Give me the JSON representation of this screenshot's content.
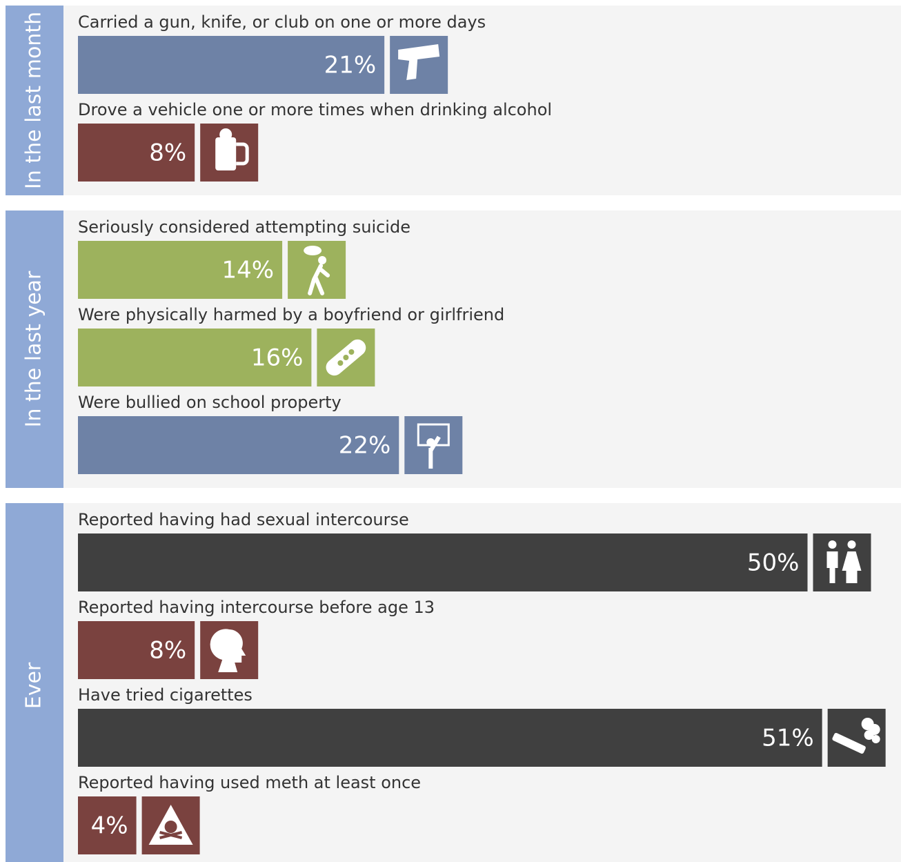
{
  "chart_data": {
    "type": "bar",
    "orientation": "horizontal",
    "groups": [
      {
        "name": "In the last month",
        "categories": [
          "Carried a gun, knife, or club on one or more days",
          "Drove a vehicle one or more times when drinking alcohol"
        ],
        "values": [
          21,
          8
        ],
        "value_labels": [
          "21%",
          "8%"
        ],
        "colors": [
          "#6e82a6",
          "#7a423f"
        ]
      },
      {
        "name": "In the last year",
        "categories": [
          "Seriously considered attempting suicide",
          "Were physically harmed by a boyfriend or girlfriend",
          "Were bullied on school property"
        ],
        "values": [
          14,
          16,
          22
        ],
        "value_labels": [
          "14%",
          "16%",
          "22%"
        ],
        "colors": [
          "#9db25d",
          "#9db25d",
          "#6e82a6"
        ]
      },
      {
        "name": "Ever",
        "categories": [
          "Reported having had sexual intercourse",
          "Reported having intercourse before age 13",
          "Have tried cigarettes",
          "Reported having used meth at least once"
        ],
        "values": [
          50,
          8,
          51,
          4
        ],
        "value_labels": [
          "50%",
          "8%",
          "51%",
          "4%"
        ],
        "colors": [
          "#404040",
          "#7a423f",
          "#404040",
          "#7a423f"
        ]
      }
    ]
  }
}
